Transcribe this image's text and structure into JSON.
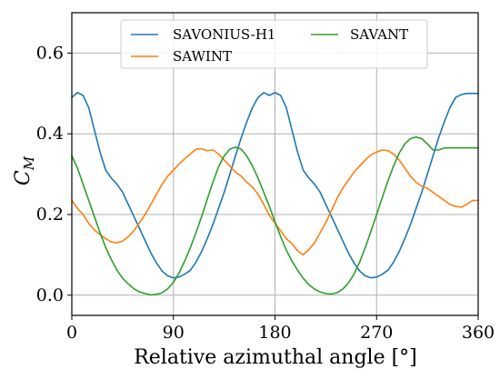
{
  "chart_data": {
    "type": "line",
    "xlabel": "Relative azimuthal angle [°]",
    "ylabel_main": "C",
    "ylabel_sub": "M",
    "xlim": [
      0,
      360
    ],
    "ylim": [
      -0.05,
      0.7
    ],
    "xticks": [
      0,
      90,
      180,
      270,
      360
    ],
    "xtick_labels": [
      "0",
      "90",
      "180",
      "270",
      "360"
    ],
    "yticks": [
      0.0,
      0.2,
      0.4,
      0.6
    ],
    "ytick_labels": [
      "0.0",
      "0.2",
      "0.4",
      "0.6"
    ],
    "grid": true,
    "legend_placement": "top-center",
    "series": [
      {
        "name": "SAVONIUS-H1",
        "color": "#1f77b4",
        "x": [
          0,
          5,
          10,
          15,
          20,
          25,
          30,
          35,
          40,
          45,
          50,
          55,
          60,
          65,
          70,
          75,
          80,
          85,
          90,
          95,
          100,
          105,
          110,
          115,
          120,
          125,
          130,
          135,
          140,
          145,
          150,
          155,
          160,
          165,
          170,
          175,
          180,
          185,
          190,
          195,
          200,
          205,
          210,
          215,
          220,
          225,
          230,
          235,
          240,
          245,
          250,
          255,
          260,
          265,
          270,
          275,
          280,
          285,
          290,
          295,
          300,
          305,
          310,
          315,
          320,
          325,
          330,
          335,
          340,
          345,
          350,
          355,
          360
        ],
        "y": [
          0.49,
          0.502,
          0.495,
          0.465,
          0.41,
          0.355,
          0.31,
          0.29,
          0.275,
          0.255,
          0.225,
          0.195,
          0.165,
          0.135,
          0.105,
          0.08,
          0.06,
          0.048,
          0.043,
          0.045,
          0.052,
          0.062,
          0.082,
          0.108,
          0.14,
          0.175,
          0.215,
          0.255,
          0.3,
          0.345,
          0.39,
          0.43,
          0.465,
          0.49,
          0.502,
          0.495,
          0.502,
          0.495,
          0.465,
          0.41,
          0.355,
          0.31,
          0.29,
          0.275,
          0.255,
          0.225,
          0.195,
          0.165,
          0.135,
          0.105,
          0.08,
          0.06,
          0.048,
          0.043,
          0.045,
          0.052,
          0.062,
          0.082,
          0.108,
          0.14,
          0.175,
          0.215,
          0.255,
          0.3,
          0.345,
          0.39,
          0.43,
          0.465,
          0.49,
          0.497,
          0.5,
          0.5,
          0.5
        ]
      },
      {
        "name": "SAWINT",
        "color": "#ff7f0e",
        "x": [
          0,
          5,
          10,
          15,
          20,
          25,
          30,
          35,
          40,
          45,
          50,
          55,
          60,
          65,
          70,
          75,
          80,
          85,
          90,
          95,
          100,
          105,
          110,
          115,
          120,
          125,
          130,
          135,
          140,
          145,
          150,
          155,
          160,
          165,
          170,
          175,
          180,
          185,
          190,
          195,
          200,
          205,
          210,
          215,
          220,
          225,
          230,
          235,
          240,
          245,
          250,
          255,
          260,
          265,
          270,
          275,
          280,
          285,
          290,
          295,
          300,
          305,
          310,
          315,
          320,
          325,
          330,
          335,
          340,
          345,
          350,
          355,
          360
        ],
        "y": [
          0.235,
          0.215,
          0.2,
          0.178,
          0.162,
          0.15,
          0.14,
          0.132,
          0.13,
          0.134,
          0.145,
          0.16,
          0.18,
          0.2,
          0.225,
          0.25,
          0.275,
          0.295,
          0.31,
          0.325,
          0.338,
          0.35,
          0.362,
          0.363,
          0.358,
          0.36,
          0.35,
          0.335,
          0.32,
          0.305,
          0.295,
          0.28,
          0.268,
          0.25,
          0.225,
          0.198,
          0.178,
          0.16,
          0.14,
          0.128,
          0.11,
          0.1,
          0.113,
          0.13,
          0.155,
          0.18,
          0.21,
          0.24,
          0.265,
          0.285,
          0.305,
          0.32,
          0.335,
          0.348,
          0.355,
          0.36,
          0.358,
          0.35,
          0.335,
          0.315,
          0.295,
          0.28,
          0.27,
          0.265,
          0.255,
          0.245,
          0.235,
          0.225,
          0.22,
          0.218,
          0.225,
          0.235,
          0.235
        ]
      },
      {
        "name": "SAVANT",
        "color": "#2ca02c",
        "x": [
          0,
          5,
          10,
          15,
          20,
          25,
          30,
          35,
          40,
          45,
          50,
          55,
          60,
          65,
          70,
          75,
          80,
          85,
          90,
          95,
          100,
          105,
          110,
          115,
          120,
          125,
          130,
          135,
          140,
          145,
          150,
          155,
          160,
          165,
          170,
          175,
          180,
          185,
          190,
          195,
          200,
          205,
          210,
          215,
          220,
          225,
          230,
          235,
          240,
          245,
          250,
          255,
          260,
          265,
          270,
          275,
          280,
          285,
          290,
          295,
          300,
          305,
          310,
          315,
          320,
          325,
          330,
          335,
          340,
          345,
          350,
          355,
          360
        ],
        "y": [
          0.345,
          0.315,
          0.275,
          0.235,
          0.195,
          0.155,
          0.118,
          0.088,
          0.062,
          0.042,
          0.028,
          0.016,
          0.008,
          0.004,
          0.001,
          0.002,
          0.006,
          0.016,
          0.032,
          0.055,
          0.085,
          0.118,
          0.155,
          0.195,
          0.238,
          0.28,
          0.318,
          0.345,
          0.362,
          0.367,
          0.362,
          0.345,
          0.32,
          0.29,
          0.255,
          0.22,
          0.182,
          0.145,
          0.112,
          0.085,
          0.062,
          0.042,
          0.026,
          0.015,
          0.008,
          0.004,
          0.003,
          0.006,
          0.015,
          0.03,
          0.052,
          0.082,
          0.118,
          0.158,
          0.2,
          0.242,
          0.283,
          0.32,
          0.352,
          0.375,
          0.388,
          0.392,
          0.388,
          0.375,
          0.36,
          0.36,
          0.365,
          0.365,
          0.365,
          0.365,
          0.365,
          0.365,
          0.365
        ]
      }
    ]
  }
}
